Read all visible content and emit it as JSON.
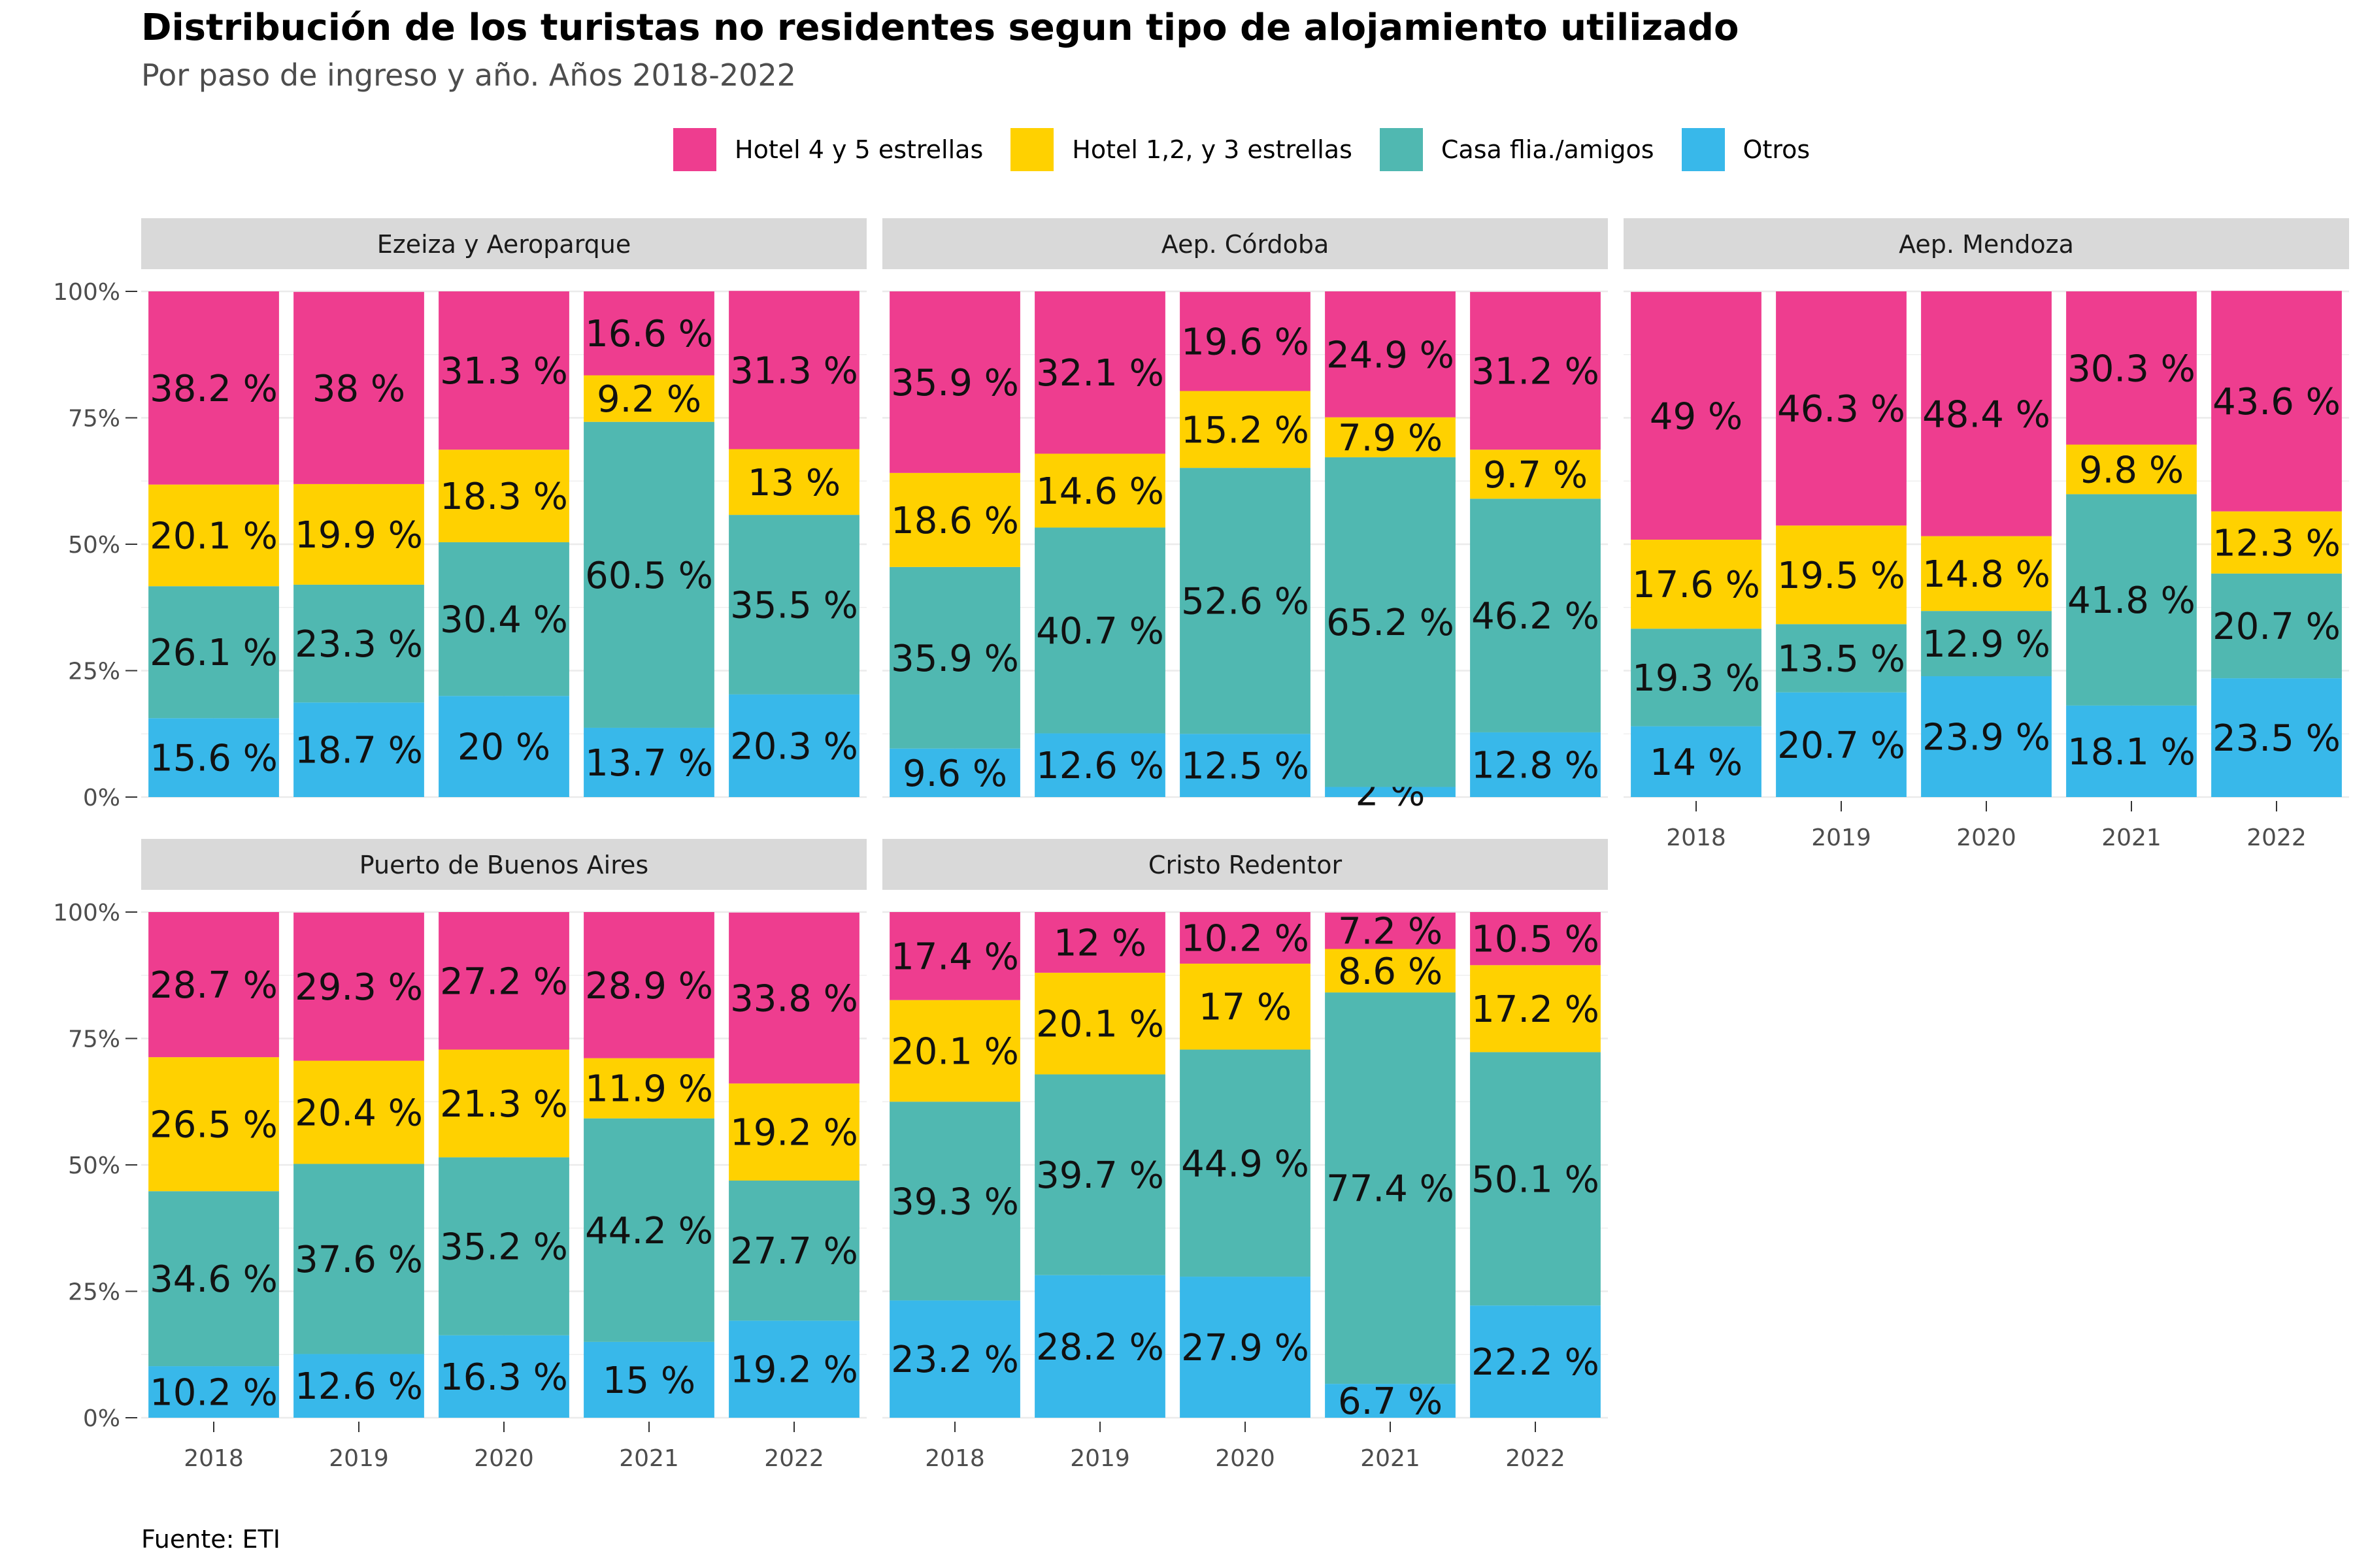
{
  "title": "Distribución de los turistas no residentes segun tipo de alojamiento utilizado",
  "subtitle": "Por paso de ingreso y año. Años 2018-2022",
  "caption": "Fuente: ETI",
  "chart_data": {
    "type": "bar",
    "stacked": "percent",
    "facet_layout": "3 columns, 2 rows",
    "legend_position": "top",
    "grid": true,
    "ylim": [
      0,
      100
    ],
    "y_ticks": [
      "0%",
      "25%",
      "50%",
      "75%",
      "100%"
    ],
    "y_tick_values": [
      0,
      25,
      50,
      75,
      100
    ],
    "categories": [
      "2018",
      "2019",
      "2020",
      "2021",
      "2022"
    ],
    "series": [
      {
        "name": "Hotel 4 y 5 estrellas",
        "color": "#EE3D8F"
      },
      {
        "name": "Hotel 1,2, y 3 estrellas",
        "color": "#FFD100"
      },
      {
        "name": "Casa flia./amigos",
        "color": "#50B8B1"
      },
      {
        "name": "Otros",
        "color": "#38B8EA"
      }
    ],
    "stack_order_bottom_to_top": [
      "Otros",
      "Casa flia./amigos",
      "Hotel 1,2, y 3 estrellas",
      "Hotel 4 y 5 estrellas"
    ],
    "panels": [
      {
        "name": "Ezeiza y Aeroparque",
        "values": {
          "Hotel 4 y 5 estrellas": [
            38.2,
            38,
            31.3,
            16.6,
            31.3
          ],
          "Hotel 1,2, y 3 estrellas": [
            20.1,
            19.9,
            18.3,
            9.2,
            13
          ],
          "Casa flia./amigos": [
            26.1,
            23.3,
            30.4,
            60.5,
            35.5
          ],
          "Otros": [
            15.6,
            18.7,
            20,
            13.7,
            20.3
          ]
        },
        "labels": {
          "Hotel 4 y 5 estrellas": [
            "38.2 %",
            "38 %",
            "31.3 %",
            "16.6 %",
            "31.3 %"
          ],
          "Hotel 1,2, y 3 estrellas": [
            "20.1 %",
            "19.9 %",
            "18.3 %",
            "9.2 %",
            "13 %"
          ],
          "Casa flia./amigos": [
            "26.1 %",
            "23.3 %",
            "30.4 %",
            "60.5 %",
            "35.5 %"
          ],
          "Otros": [
            "15.6 %",
            "18.7 %",
            "20 %",
            "13.7 %",
            "20.3 %"
          ]
        }
      },
      {
        "name": "Aep. Córdoba",
        "values": {
          "Hotel 4 y 5 estrellas": [
            35.9,
            32.1,
            19.6,
            24.9,
            31.2
          ],
          "Hotel 1,2, y 3 estrellas": [
            18.6,
            14.6,
            15.2,
            7.9,
            9.7
          ],
          "Casa flia./amigos": [
            35.9,
            40.7,
            52.6,
            65.2,
            46.2
          ],
          "Otros": [
            9.6,
            12.6,
            12.5,
            2,
            12.8
          ]
        },
        "labels": {
          "Hotel 4 y 5 estrellas": [
            "35.9 %",
            "32.1 %",
            "19.6 %",
            "24.9 %",
            "31.2 %"
          ],
          "Hotel 1,2, y 3 estrellas": [
            "18.6 %",
            "14.6 %",
            "15.2 %",
            "7.9 %",
            "9.7 %"
          ],
          "Casa flia./amigos": [
            "35.9 %",
            "40.7 %",
            "52.6 %",
            "65.2 %",
            "46.2 %"
          ],
          "Otros": [
            "9.6 %",
            "12.6 %",
            "12.5 %",
            "2 %",
            "12.8 %"
          ]
        }
      },
      {
        "name": "Aep. Mendoza",
        "values": {
          "Hotel 4 y 5 estrellas": [
            49,
            46.3,
            48.4,
            30.3,
            43.6
          ],
          "Hotel 1,2, y 3 estrellas": [
            17.6,
            19.5,
            14.8,
            9.8,
            12.3
          ],
          "Casa flia./amigos": [
            19.3,
            13.5,
            12.9,
            41.8,
            20.7
          ],
          "Otros": [
            14,
            20.7,
            23.9,
            18.1,
            23.5
          ]
        },
        "labels": {
          "Hotel 4 y 5 estrellas": [
            "49 %",
            "46.3 %",
            "48.4 %",
            "30.3 %",
            "43.6 %"
          ],
          "Hotel 1,2, y 3 estrellas": [
            "17.6 %",
            "19.5 %",
            "14.8 %",
            "9.8 %",
            "12.3 %"
          ],
          "Casa flia./amigos": [
            "19.3 %",
            "13.5 %",
            "12.9 %",
            "41.8 %",
            "20.7 %"
          ],
          "Otros": [
            "14 %",
            "20.7 %",
            "23.9 %",
            "18.1 %",
            "23.5 %"
          ]
        }
      },
      {
        "name": "Puerto de Buenos Aires",
        "values": {
          "Hotel 4 y 5 estrellas": [
            28.7,
            29.3,
            27.2,
            28.9,
            33.8
          ],
          "Hotel 1,2, y 3 estrellas": [
            26.5,
            20.4,
            21.3,
            11.9,
            19.2
          ],
          "Casa flia./amigos": [
            34.6,
            37.6,
            35.2,
            44.2,
            27.7
          ],
          "Otros": [
            10.2,
            12.6,
            16.3,
            15,
            19.2
          ]
        },
        "labels": {
          "Hotel 4 y 5 estrellas": [
            "28.7 %",
            "29.3 %",
            "27.2 %",
            "28.9 %",
            "33.8 %"
          ],
          "Hotel 1,2, y 3 estrellas": [
            "26.5 %",
            "20.4 %",
            "21.3 %",
            "11.9 %",
            "19.2 %"
          ],
          "Casa flia./amigos": [
            "34.6 %",
            "37.6 %",
            "35.2 %",
            "44.2 %",
            "27.7 %"
          ],
          "Otros": [
            "10.2 %",
            "12.6 %",
            "16.3 %",
            "15 %",
            "19.2 %"
          ]
        }
      },
      {
        "name": "Cristo Redentor",
        "values": {
          "Hotel 4 y 5 estrellas": [
            17.4,
            12,
            10.2,
            7.2,
            10.5
          ],
          "Hotel 1,2, y 3 estrellas": [
            20.1,
            20.1,
            17,
            8.6,
            17.2
          ],
          "Casa flia./amigos": [
            39.3,
            39.7,
            44.9,
            77.4,
            50.1
          ],
          "Otros": [
            23.2,
            28.2,
            27.9,
            6.7,
            22.2
          ]
        },
        "labels": {
          "Hotel 4 y 5 estrellas": [
            "17.4 %",
            "12 %",
            "10.2 %",
            "7.2 %",
            "10.5 %"
          ],
          "Hotel 1,2, y 3 estrellas": [
            "20.1 %",
            "20.1 %",
            "17 %",
            "8.6 %",
            "17.2 %"
          ],
          "Casa flia./amigos": [
            "39.3 %",
            "39.7 %",
            "44.9 %",
            "77.4 %",
            "50.1 %"
          ],
          "Otros": [
            "23.2 %",
            "28.2 %",
            "27.9 %",
            "6.7 %",
            "22.2 %"
          ]
        }
      }
    ]
  }
}
